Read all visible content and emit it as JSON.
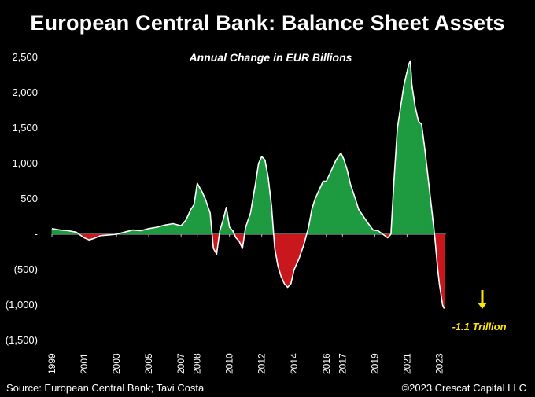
{
  "title": "European Central Bank: Balance Sheet Assets",
  "subtitle": "Annual Change in EUR Billions",
  "source": "Source: European Central Bank; Tavi Costa",
  "copyright": "©2023 Crescat Capital LLC",
  "colors": {
    "positive": "#1e9a40",
    "negative": "#c8191e",
    "line": "#ffffff",
    "annotation": "#ffe600",
    "background": "#000000"
  },
  "chart_data": {
    "type": "area",
    "title": "European Central Bank: Balance Sheet Assets",
    "subtitle": "Annual Change in EUR Billions",
    "ylim": [
      -1500,
      2500
    ],
    "xlim": [
      1999,
      2026
    ],
    "y_ticks": [
      2500,
      2000,
      1500,
      1000,
      500,
      0,
      -500,
      -1000,
      -1500
    ],
    "y_tick_labels": [
      "2,500",
      "2,000",
      "1,500",
      "1,000",
      "500",
      "-",
      "(500)",
      "(1,000)",
      "(1,500)"
    ],
    "x_ticks": [
      1999,
      2001,
      2003,
      2005,
      2007,
      2008,
      2010,
      2012,
      2014,
      2016,
      2017,
      2019,
      2021,
      2023
    ],
    "x_tick_labels": [
      "1999",
      "2001",
      "2003",
      "2005",
      "2007",
      "2008",
      "2010",
      "2012",
      "2014",
      "2016",
      "2017",
      "2019",
      "2021",
      "2023"
    ],
    "grid": false,
    "series": [
      {
        "x": [
          1999.0,
          1999.5,
          2000.0,
          2000.5,
          2001.0,
          2001.3,
          2001.6,
          2002.0,
          2002.5,
          2003.0,
          2003.5,
          2004.0,
          2004.5,
          2005.0,
          2005.5,
          2006.0,
          2006.5,
          2007.0,
          2007.3,
          2007.6,
          2007.8,
          2008.0,
          2008.3,
          2008.5,
          2008.8,
          2009.0,
          2009.2,
          2009.4,
          2009.6,
          2009.8,
          2010.0,
          2010.2,
          2010.4,
          2010.6,
          2010.8,
          2011.0,
          2011.3,
          2011.6,
          2011.8,
          2012.0,
          2012.2,
          2012.4,
          2012.6,
          2012.8,
          2013.0,
          2013.2,
          2013.4,
          2013.6,
          2013.8,
          2014.0,
          2014.3,
          2014.6,
          2014.9,
          2015.1,
          2015.3,
          2015.5,
          2015.8,
          2016.0,
          2016.3,
          2016.6,
          2016.9,
          2017.1,
          2017.3,
          2017.5,
          2017.8,
          2018.0,
          2018.3,
          2018.6,
          2018.9,
          2019.2,
          2019.5,
          2019.8,
          2020.0,
          2020.2,
          2020.4,
          2020.6,
          2020.8,
          2021.0,
          2021.1,
          2021.2,
          2021.3,
          2021.5,
          2021.7,
          2021.9,
          2022.1,
          2022.3,
          2022.5,
          2022.7,
          2022.9,
          2023.0,
          2023.1,
          2023.2,
          2023.3
        ],
        "y": [
          80,
          60,
          50,
          30,
          -50,
          -80,
          -60,
          -20,
          -10,
          0,
          30,
          60,
          50,
          80,
          100,
          130,
          150,
          120,
          200,
          350,
          420,
          720,
          600,
          500,
          300,
          -200,
          -280,
          50,
          200,
          380,
          100,
          50,
          -50,
          -100,
          -200,
          100,
          300,
          700,
          1000,
          1100,
          1050,
          800,
          400,
          -200,
          -450,
          -600,
          -700,
          -750,
          -700,
          -500,
          -350,
          -150,
          100,
          350,
          500,
          600,
          750,
          750,
          900,
          1050,
          1150,
          1050,
          900,
          700,
          500,
          350,
          250,
          150,
          60,
          50,
          0,
          -50,
          0,
          800,
          1500,
          1800,
          2100,
          2300,
          2400,
          2450,
          2100,
          1800,
          1600,
          1550,
          1200,
          800,
          400,
          0,
          -500,
          -700,
          -850,
          -1000,
          -1050
        ]
      }
    ],
    "annotations": [
      {
        "text": "-1.1 Trillion",
        "x": 2024.6,
        "y": -1300,
        "arrow": true
      }
    ]
  }
}
